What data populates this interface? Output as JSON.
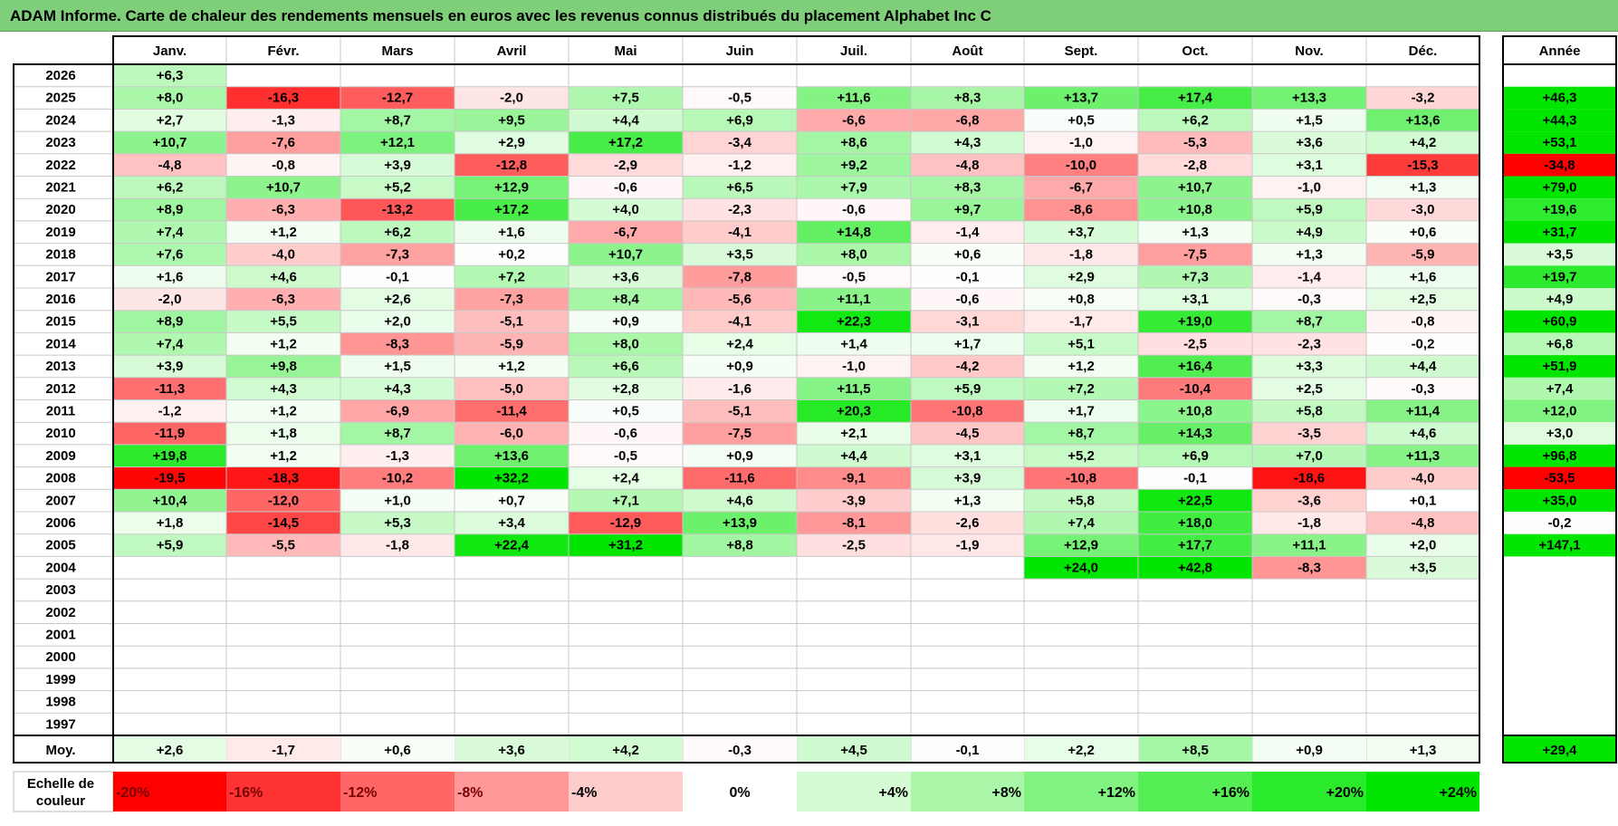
{
  "title": "ADAM Informe. Carte de chaleur des rendements mensuels en euros avec les revenus connus distribués du placement Alphabet Inc C",
  "chart_data": {
    "type": "heatmap",
    "months": [
      "Janv.",
      "Févr.",
      "Mars",
      "Avril",
      "Mai",
      "Juin",
      "Juil.",
      "Août",
      "Sept.",
      "Oct.",
      "Nov.",
      "Déc."
    ],
    "year_header": "Année",
    "rows": [
      {
        "year": "2026",
        "values": [
          "+6,3",
          "",
          "",
          "",
          "",
          "",
          "",
          "",
          "",
          "",
          "",
          ""
        ],
        "annual": ""
      },
      {
        "year": "2025",
        "values": [
          "+8,0",
          "-16,3",
          "-12,7",
          "-2,0",
          "+7,5",
          "-0,5",
          "+11,6",
          "+8,3",
          "+13,7",
          "+17,4",
          "+13,3",
          "-3,2"
        ],
        "annual": "+46,3"
      },
      {
        "year": "2024",
        "values": [
          "+2,7",
          "-1,3",
          "+8,7",
          "+9,5",
          "+4,4",
          "+6,9",
          "-6,6",
          "-6,8",
          "+0,5",
          "+6,2",
          "+1,5",
          "+13,6"
        ],
        "annual": "+44,3"
      },
      {
        "year": "2023",
        "values": [
          "+10,7",
          "-7,6",
          "+12,1",
          "+2,9",
          "+17,2",
          "-3,4",
          "+8,6",
          "+4,3",
          "-1,0",
          "-5,3",
          "+3,6",
          "+4,2"
        ],
        "annual": "+53,1"
      },
      {
        "year": "2022",
        "values": [
          "-4,8",
          "-0,8",
          "+3,9",
          "-12,8",
          "-2,9",
          "-1,2",
          "+9,2",
          "-4,8",
          "-10,0",
          "-2,8",
          "+3,1",
          "-15,3"
        ],
        "annual": "-34,8"
      },
      {
        "year": "2021",
        "values": [
          "+6,2",
          "+10,7",
          "+5,2",
          "+12,9",
          "-0,6",
          "+6,5",
          "+7,9",
          "+8,3",
          "-6,7",
          "+10,7",
          "-1,0",
          "+1,3"
        ],
        "annual": "+79,0"
      },
      {
        "year": "2020",
        "values": [
          "+8,9",
          "-6,3",
          "-13,2",
          "+17,2",
          "+4,0",
          "-2,3",
          "-0,6",
          "+9,7",
          "-8,6",
          "+10,8",
          "+5,9",
          "-3,0"
        ],
        "annual": "+19,6"
      },
      {
        "year": "2019",
        "values": [
          "+7,4",
          "+1,2",
          "+6,2",
          "+1,6",
          "-6,7",
          "-4,1",
          "+14,8",
          "-1,4",
          "+3,7",
          "+1,3",
          "+4,9",
          "+0,6"
        ],
        "annual": "+31,7"
      },
      {
        "year": "2018",
        "values": [
          "+7,6",
          "-4,0",
          "-7,3",
          "+0,2",
          "+10,7",
          "+3,5",
          "+8,0",
          "+0,6",
          "-1,8",
          "-7,5",
          "+1,3",
          "-5,9"
        ],
        "annual": "+3,5"
      },
      {
        "year": "2017",
        "values": [
          "+1,6",
          "+4,6",
          "-0,1",
          "+7,2",
          "+3,6",
          "-7,8",
          "-0,5",
          "-0,1",
          "+2,9",
          "+7,3",
          "-1,4",
          "+1,6"
        ],
        "annual": "+19,7"
      },
      {
        "year": "2016",
        "values": [
          "-2,0",
          "-6,3",
          "+2,6",
          "-7,3",
          "+8,4",
          "-5,6",
          "+11,1",
          "-0,6",
          "+0,8",
          "+3,1",
          "-0,3",
          "+2,5"
        ],
        "annual": "+4,9"
      },
      {
        "year": "2015",
        "values": [
          "+8,9",
          "+5,5",
          "+2,0",
          "-5,1",
          "+0,9",
          "-4,1",
          "+22,3",
          "-3,1",
          "-1,7",
          "+19,0",
          "+8,7",
          "-0,8"
        ],
        "annual": "+60,9"
      },
      {
        "year": "2014",
        "values": [
          "+7,4",
          "+1,2",
          "-8,3",
          "-5,9",
          "+8,0",
          "+2,4",
          "+1,4",
          "+1,7",
          "+5,1",
          "-2,5",
          "-2,3",
          "-0,2"
        ],
        "annual": "+6,8"
      },
      {
        "year": "2013",
        "values": [
          "+3,9",
          "+9,8",
          "+1,5",
          "+1,2",
          "+6,6",
          "+0,9",
          "-1,0",
          "-4,2",
          "+1,2",
          "+16,4",
          "+3,3",
          "+4,4"
        ],
        "annual": "+51,9"
      },
      {
        "year": "2012",
        "values": [
          "-11,3",
          "+4,3",
          "+4,3",
          "-5,0",
          "+2,8",
          "-1,6",
          "+11,5",
          "+5,9",
          "+7,2",
          "-10,4",
          "+2,5",
          "-0,3"
        ],
        "annual": "+7,4"
      },
      {
        "year": "2011",
        "values": [
          "-1,2",
          "+1,2",
          "-6,9",
          "-11,4",
          "+0,5",
          "-5,1",
          "+20,3",
          "-10,8",
          "+1,7",
          "+10,8",
          "+5,8",
          "+11,4"
        ],
        "annual": "+12,0"
      },
      {
        "year": "2010",
        "values": [
          "-11,9",
          "+1,8",
          "+8,7",
          "-6,0",
          "-0,6",
          "-7,5",
          "+2,1",
          "-4,5",
          "+8,7",
          "+14,3",
          "-3,5",
          "+4,6"
        ],
        "annual": "+3,0"
      },
      {
        "year": "2009",
        "values": [
          "+19,8",
          "+1,2",
          "-1,3",
          "+13,6",
          "-0,5",
          "+0,9",
          "+4,4",
          "+3,1",
          "+5,2",
          "+6,9",
          "+7,0",
          "+11,3"
        ],
        "annual": "+96,8"
      },
      {
        "year": "2008",
        "values": [
          "-19,5",
          "-18,3",
          "-10,2",
          "+32,2",
          "+2,4",
          "-11,6",
          "-9,1",
          "+3,9",
          "-10,8",
          "-0,1",
          "-18,6",
          "-4,0"
        ],
        "annual": "-53,5"
      },
      {
        "year": "2007",
        "values": [
          "+10,4",
          "-12,0",
          "+1,0",
          "+0,7",
          "+7,1",
          "+4,6",
          "-3,9",
          "+1,3",
          "+5,8",
          "+22,5",
          "-3,6",
          "+0,1"
        ],
        "annual": "+35,0"
      },
      {
        "year": "2006",
        "values": [
          "+1,8",
          "-14,5",
          "+5,3",
          "+3,4",
          "-12,9",
          "+13,9",
          "-8,1",
          "-2,6",
          "+7,4",
          "+18,0",
          "-1,8",
          "-4,8"
        ],
        "annual": "-0,2"
      },
      {
        "year": "2005",
        "values": [
          "+5,9",
          "-5,5",
          "-1,8",
          "+22,4",
          "+31,2",
          "+8,8",
          "-2,5",
          "-1,9",
          "+12,9",
          "+17,7",
          "+11,1",
          "+2,0"
        ],
        "annual": "+147,1"
      },
      {
        "year": "2004",
        "values": [
          "",
          "",
          "",
          "",
          "",
          "",
          "",
          "",
          "+24,0",
          "+42,8",
          "-8,3",
          "+3,5"
        ],
        "annual": ""
      },
      {
        "year": "2003",
        "values": [
          "",
          "",
          "",
          "",
          "",
          "",
          "",
          "",
          "",
          "",
          "",
          ""
        ],
        "annual": ""
      },
      {
        "year": "2002",
        "values": [
          "",
          "",
          "",
          "",
          "",
          "",
          "",
          "",
          "",
          "",
          "",
          ""
        ],
        "annual": ""
      },
      {
        "year": "2001",
        "values": [
          "",
          "",
          "",
          "",
          "",
          "",
          "",
          "",
          "",
          "",
          "",
          ""
        ],
        "annual": ""
      },
      {
        "year": "2000",
        "values": [
          "",
          "",
          "",
          "",
          "",
          "",
          "",
          "",
          "",
          "",
          "",
          ""
        ],
        "annual": ""
      },
      {
        "year": "1999",
        "values": [
          "",
          "",
          "",
          "",
          "",
          "",
          "",
          "",
          "",
          "",
          "",
          ""
        ],
        "annual": ""
      },
      {
        "year": "1998",
        "values": [
          "",
          "",
          "",
          "",
          "",
          "",
          "",
          "",
          "",
          "",
          "",
          ""
        ],
        "annual": ""
      },
      {
        "year": "1997",
        "values": [
          "",
          "",
          "",
          "",
          "",
          "",
          "",
          "",
          "",
          "",
          "",
          ""
        ],
        "annual": ""
      }
    ],
    "average": {
      "label": "Moy.",
      "values": [
        "+2,6",
        "-1,7",
        "+0,6",
        "+3,6",
        "+4,2",
        "-0,3",
        "+4,5",
        "-0,1",
        "+2,2",
        "+8,5",
        "+0,9",
        "+1,3"
      ],
      "annual": "+29,4"
    },
    "legend": {
      "label_line1": "Echelle de",
      "label_line2": "couleur",
      "steps": [
        {
          "label": "-20%",
          "value": -20
        },
        {
          "label": "-16%",
          "value": -16
        },
        {
          "label": "-12%",
          "value": -12
        },
        {
          "label": "-8%",
          "value": -8
        },
        {
          "label": "-4%",
          "value": -4
        },
        {
          "label": "0%",
          "value": 0
        },
        {
          "label": "+4%",
          "value": 4
        },
        {
          "label": "+8%",
          "value": 8
        },
        {
          "label": "+12%",
          "value": 12
        },
        {
          "label": "+16%",
          "value": 16
        },
        {
          "label": "+20%",
          "value": 20
        },
        {
          "label": "+24%",
          "value": 24
        }
      ]
    },
    "colors": {
      "negative_max": "#ff0000",
      "zero": "#ffffff",
      "positive_max": "#00e600"
    }
  }
}
